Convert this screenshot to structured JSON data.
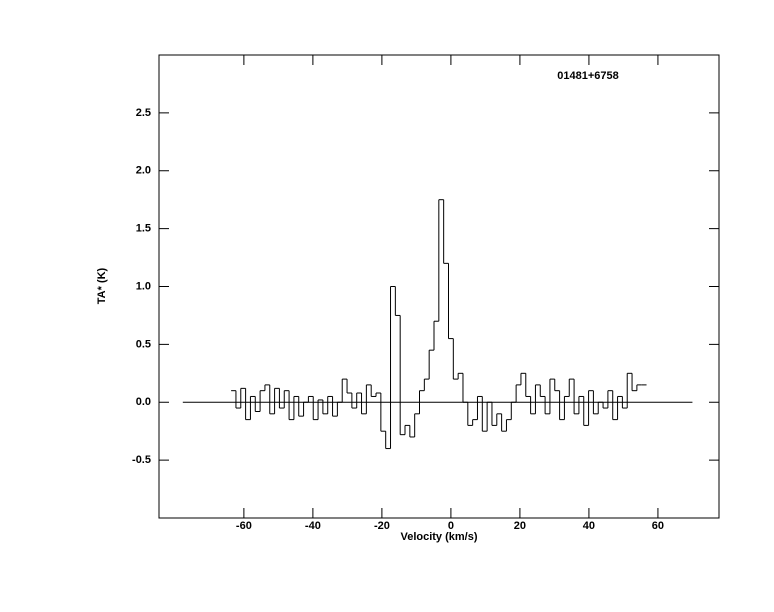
{
  "chart_data": {
    "type": "step",
    "annotation": "01481+6758",
    "x_label": "Velocity (km/s)",
    "y_label": "TA* (K)",
    "xlim": [
      -84.6,
      77.7
    ],
    "ylim": [
      -1.0,
      3.0
    ],
    "xticks": [
      -60,
      -40,
      -20,
      0,
      20,
      40,
      60
    ],
    "yticks": [
      -0.5,
      {
        "value": 0,
        "label": "0.0"
      },
      0.5,
      {
        "value": 1,
        "label": "1.0"
      },
      1.5,
      {
        "value": 2,
        "label": "2.0"
      },
      2.5
    ],
    "baseline": {
      "value": 0,
      "x": [
        -77.7,
        70
      ]
    },
    "color": "#000000",
    "x": [
      -63,
      -61.6,
      -60.2,
      -58.8,
      -57.4,
      -56,
      -54.6,
      -53.2,
      -51.8,
      -50.4,
      -49,
      -47.6,
      -46.2,
      -44.8,
      -43.4,
      -42,
      -40.6,
      -39.2,
      -37.8,
      -36.4,
      -35,
      -33.6,
      -32.2,
      -30.8,
      -29.4,
      -28,
      -26.6,
      -25.2,
      -23.8,
      -22.4,
      -21,
      -19.6,
      -18.2,
      -16.8,
      -15.4,
      -14,
      -12.6,
      -11.2,
      -9.8,
      -8.4,
      -7,
      -5.6,
      -4.2,
      -2.8,
      -1.4,
      0,
      1.4,
      2.8,
      4.2,
      5.6,
      7,
      8.4,
      9.8,
      11.2,
      12.6,
      14,
      15.4,
      16.8,
      18.2,
      19.6,
      21,
      22.4,
      23.8,
      25.2,
      26.6,
      28,
      29.4,
      30.8,
      32.2,
      33.6,
      35,
      36.4,
      37.8,
      39.2,
      40.6,
      42,
      43.4,
      44.8,
      46.2,
      47.6,
      49,
      50.4,
      51.8,
      53.2,
      54.6,
      56
    ],
    "values": [
      0.1,
      -0.05,
      0.12,
      -0.15,
      0.05,
      -0.08,
      0.1,
      0.15,
      -0.1,
      0.12,
      -0.05,
      0.1,
      -0.15,
      0.05,
      -0.12,
      0.0,
      0.05,
      -0.15,
      0.02,
      -0.1,
      0.05,
      -0.12,
      0.0,
      0.2,
      0.08,
      -0.05,
      0.08,
      -0.1,
      0.15,
      0.05,
      0.08,
      -0.25,
      -0.4,
      1.0,
      0.75,
      -0.28,
      -0.2,
      -0.3,
      -0.1,
      0.1,
      0.2,
      0.45,
      0.7,
      1.75,
      1.2,
      0.55,
      0.2,
      0.25,
      0.0,
      -0.2,
      -0.15,
      0.05,
      -0.25,
      0.0,
      -0.2,
      -0.1,
      -0.25,
      -0.15,
      0.0,
      0.15,
      0.25,
      0.05,
      -0.1,
      0.15,
      0.05,
      -0.1,
      0.2,
      0.1,
      -0.15,
      0.05,
      0.2,
      -0.1,
      0.05,
      -0.2,
      0.1,
      -0.1,
      0.0,
      -0.05,
      0.1,
      -0.15,
      0.05,
      -0.05,
      0.25,
      0.1,
      0.15,
      0.15
    ]
  }
}
